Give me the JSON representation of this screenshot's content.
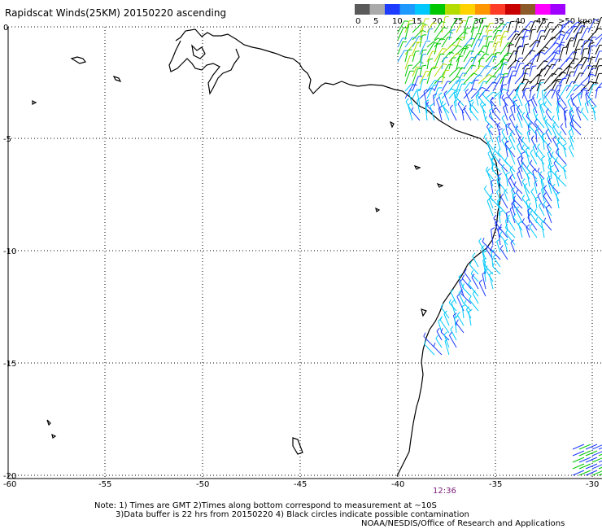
{
  "header": {
    "title": "Rapidscat Winds(25KM) 20150220 ascending"
  },
  "legend": {
    "colors": [
      "#5a5a5a",
      "#aaaaaa",
      "#1e3cff",
      "#1e9aff",
      "#00c8ff",
      "#00c800",
      "#b4dc00",
      "#ffd200",
      "#ff9600",
      "#ff3c28",
      "#c80000",
      "#8c5a28",
      "#ff00ff",
      "#a000ff"
    ],
    "labels": [
      "0",
      "5",
      "10",
      "15",
      "20",
      "25",
      "30",
      "35",
      "40",
      "45",
      ">50 knots"
    ]
  },
  "axes": {
    "lon_labels": [
      "-60",
      "-55",
      "-50",
      "-45",
      "-40",
      "-35",
      "-30"
    ],
    "lat_labels": [
      "0",
      "-5",
      "-10",
      "-15",
      "-20"
    ]
  },
  "time_label": "12:36",
  "notes": {
    "line1": "Note: 1) Times are GMT 2)Times along bottom correspond to measurement at ~10S",
    "line2": "3)Data buffer is 22 hrs from 20150220 4) Black circles indicate possible contamination",
    "line3": "NOAA/NESDIS/Office of Research and Applications"
  }
}
